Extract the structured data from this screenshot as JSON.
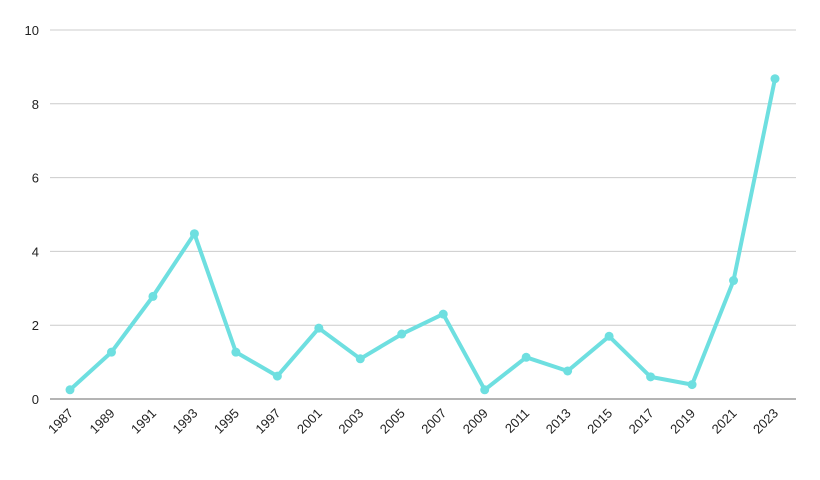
{
  "chart_data": {
    "type": "line",
    "title": "",
    "xlabel": "",
    "ylabel": "",
    "x": [
      "1987",
      "1989",
      "1991",
      "1993",
      "1995",
      "1997",
      "2001",
      "2003",
      "2005",
      "2007",
      "2009",
      "2011",
      "2013",
      "2015",
      "2017",
      "2019",
      "2021",
      "2023"
    ],
    "series": [
      {
        "values": [
          0.25,
          1.27,
          2.78,
          4.48,
          1.27,
          0.62,
          1.92,
          1.09,
          1.76,
          2.3,
          0.25,
          1.13,
          0.76,
          1.7,
          0.6,
          0.39,
          3.21,
          8.68
        ]
      }
    ],
    "y_ticks": [
      "0",
      "2",
      "4",
      "6",
      "8",
      "10"
    ],
    "ylim": [
      0,
      10
    ],
    "grid": true,
    "legend": "none",
    "colors": {
      "line": "#6EDFE0",
      "grid": "#cccccc",
      "axis": "#888888",
      "text": "#222222"
    }
  }
}
